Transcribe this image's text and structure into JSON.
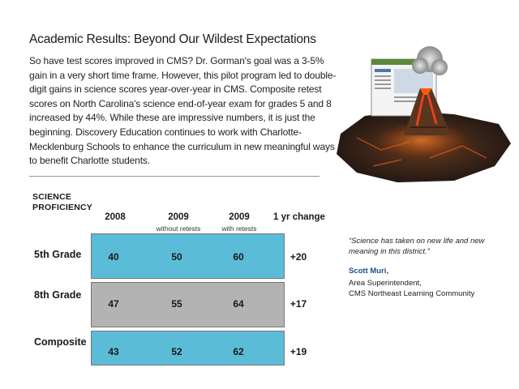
{
  "title": "Academic Results: Beyond Our Wildest Expectations",
  "body": "So have test scores improved in CMS? Dr. Gorman's goal was a 3-5% gain in a very short time frame. However, this pilot program led to double-digit gains in science scores year-over-year in CMS. Composite retest scores on North Carolina's science end-of-year exam for grades 5 and 8 increased by 44%. While these are impressive numbers, it is just the beginning.  Discovery Education continues to work with Charlotte-Mecklenburg Schools to enhance the curriculum in new meaningful ways to benefit Charlotte students.",
  "table": {
    "label_line1": "SCIENCE",
    "label_line2": "PROFICIENCY",
    "columns": [
      {
        "head": "2008",
        "sub": ""
      },
      {
        "head": "2009",
        "sub": "without retests"
      },
      {
        "head": "2009",
        "sub": "with retests"
      },
      {
        "head": "1 yr change",
        "sub": ""
      }
    ],
    "rows": [
      {
        "label": "5th Grade",
        "values": [
          "40",
          "50",
          "60"
        ],
        "change": "+20",
        "color": "#5bbcd8"
      },
      {
        "label": "8th Grade",
        "values": [
          "47",
          "55",
          "64"
        ],
        "change": "+17",
        "color": "#b3b3b3"
      },
      {
        "label": "Composite",
        "values": [
          "43",
          "52",
          "62"
        ],
        "change": "+19",
        "color": "#5bbcd8"
      }
    ]
  },
  "quote": {
    "text": "“Science has taken on new life and new meaning in this district.”",
    "author": "Scott Muri,",
    "role_line1": "Area Superintendent,",
    "role_line2": "CMS Northeast Learning Community"
  },
  "illustration": {
    "icon": "volcano-with-screen-illustration"
  }
}
